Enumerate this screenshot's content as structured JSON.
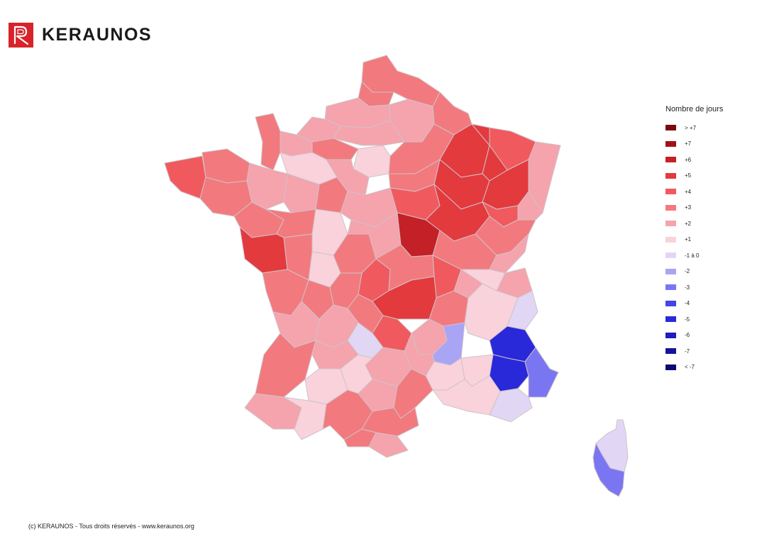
{
  "brand": {
    "name": "KERAUNOS",
    "color": "#d8232a"
  },
  "legend": {
    "title": "Nombre de jours",
    "items": [
      {
        "label": "> +7",
        "color": "#7a0a10"
      },
      {
        "label": "+7",
        "color": "#a11218"
      },
      {
        "label": "+6",
        "color": "#c42027"
      },
      {
        "label": "+5",
        "color": "#e33a3e"
      },
      {
        "label": "+4",
        "color": "#f05a5e"
      },
      {
        "label": "+3",
        "color": "#f27a7e"
      },
      {
        "label": "+2",
        "color": "#f5a3ad"
      },
      {
        "label": "+1",
        "color": "#f9d2dc"
      },
      {
        "label": "-1 à 0",
        "color": "#e2d6f5"
      },
      {
        "label": "-2",
        "color": "#aaa4f5"
      },
      {
        "label": "-3",
        "color": "#7a76f2"
      },
      {
        "label": "-4",
        "color": "#4444e8"
      },
      {
        "label": "-5",
        "color": "#2929da"
      },
      {
        "label": "-6",
        "color": "#1e1eb8"
      },
      {
        "label": "-7",
        "color": "#14149a"
      },
      {
        "label": "< -7",
        "color": "#0a0a70"
      }
    ]
  },
  "map": {
    "border_color": "#cfc3c8",
    "regions": [
      {
        "name": "nord",
        "level": "+3"
      },
      {
        "name": "pas-de-calais",
        "level": "+3"
      },
      {
        "name": "somme",
        "level": "+2"
      },
      {
        "name": "aisne",
        "level": "+2"
      },
      {
        "name": "ardennes",
        "level": "+3"
      },
      {
        "name": "seine-maritime",
        "level": "+2"
      },
      {
        "name": "oise",
        "level": "+2"
      },
      {
        "name": "manche",
        "level": "+3"
      },
      {
        "name": "calvados",
        "level": "+2"
      },
      {
        "name": "eure",
        "level": "+3"
      },
      {
        "name": "orne",
        "level": "+1"
      },
      {
        "name": "ile-de-france",
        "level": "+1"
      },
      {
        "name": "marne",
        "level": "+3"
      },
      {
        "name": "meuse",
        "level": "+5"
      },
      {
        "name": "moselle",
        "level": "+4"
      },
      {
        "name": "meurthe-et-moselle",
        "level": "+5"
      },
      {
        "name": "bas-rhin",
        "level": "+2"
      },
      {
        "name": "finistere",
        "level": "+4"
      },
      {
        "name": "cotes-darmor",
        "level": "+3"
      },
      {
        "name": "morbihan",
        "level": "+3"
      },
      {
        "name": "ille-et-vilaine",
        "level": "+2"
      },
      {
        "name": "mayenne",
        "level": "+2"
      },
      {
        "name": "sarthe",
        "level": "+3"
      },
      {
        "name": "eure-et-loir",
        "level": "+2"
      },
      {
        "name": "aube",
        "level": "+3"
      },
      {
        "name": "haute-marne",
        "level": "+5"
      },
      {
        "name": "vosges",
        "level": "+5"
      },
      {
        "name": "haut-rhin",
        "level": "+2"
      },
      {
        "name": "loire-atlantique",
        "level": "+3"
      },
      {
        "name": "maine-et-loire",
        "level": "+3"
      },
      {
        "name": "indre-et-loire",
        "level": "+1"
      },
      {
        "name": "loiret",
        "level": "+2"
      },
      {
        "name": "yonne",
        "level": "+4"
      },
      {
        "name": "cote-dor",
        "level": "+5"
      },
      {
        "name": "haute-saone",
        "level": "+4"
      },
      {
        "name": "doubs",
        "level": "+3"
      },
      {
        "name": "vendee",
        "level": "+5"
      },
      {
        "name": "deux-sevres",
        "level": "+3"
      },
      {
        "name": "vienne",
        "level": "+1"
      },
      {
        "name": "indre",
        "level": "+3"
      },
      {
        "name": "cher",
        "level": "+2"
      },
      {
        "name": "nievre",
        "level": "+6"
      },
      {
        "name": "saone-et-loire",
        "level": "+3"
      },
      {
        "name": "jura",
        "level": "+2"
      },
      {
        "name": "charente-maritime",
        "level": "+3"
      },
      {
        "name": "charente",
        "level": "+3"
      },
      {
        "name": "haute-vienne",
        "level": "+3"
      },
      {
        "name": "creuse",
        "level": "+4"
      },
      {
        "name": "allier",
        "level": "+3"
      },
      {
        "name": "loire",
        "level": "+4"
      },
      {
        "name": "rhone",
        "level": "+2"
      },
      {
        "name": "ain",
        "level": "+1"
      },
      {
        "name": "haute-savoie",
        "level": "+2"
      },
      {
        "name": "gironde",
        "level": "+2"
      },
      {
        "name": "dordogne",
        "level": "+2"
      },
      {
        "name": "correze",
        "level": "+3"
      },
      {
        "name": "puy-de-dome",
        "level": "+5"
      },
      {
        "name": "haute-loire",
        "level": "+3"
      },
      {
        "name": "isere",
        "level": "+1"
      },
      {
        "name": "savoie",
        "level": "-1 à 0"
      },
      {
        "name": "cantal",
        "level": "+4"
      },
      {
        "name": "ardeche",
        "level": "+2"
      },
      {
        "name": "drome",
        "level": "-2"
      },
      {
        "name": "hautes-alpes",
        "level": "-5"
      },
      {
        "name": "landes",
        "level": "+3"
      },
      {
        "name": "lot-et-garonne",
        "level": "+2"
      },
      {
        "name": "lot",
        "level": "-1 à 0"
      },
      {
        "name": "aveyron",
        "level": "+2"
      },
      {
        "name": "lozere",
        "level": "+2"
      },
      {
        "name": "gard",
        "level": "+1"
      },
      {
        "name": "vaucluse",
        "level": "+1"
      },
      {
        "name": "alpes-de-haute-provence",
        "level": "-5"
      },
      {
        "name": "alpes-maritimes",
        "level": "-3"
      },
      {
        "name": "gers",
        "level": "+1"
      },
      {
        "name": "tarn-et-garonne",
        "level": "+1"
      },
      {
        "name": "tarn",
        "level": "+2"
      },
      {
        "name": "herault",
        "level": "+3"
      },
      {
        "name": "bouches-du-rhone",
        "level": "+1"
      },
      {
        "name": "var",
        "level": "-1 à 0"
      },
      {
        "name": "pyrenees-atlantiques",
        "level": "+2"
      },
      {
        "name": "hautes-pyrenees",
        "level": "+1"
      },
      {
        "name": "haute-garonne",
        "level": "+3"
      },
      {
        "name": "aude",
        "level": "+3"
      },
      {
        "name": "ariege",
        "level": "+3"
      },
      {
        "name": "pyrenees-orientales",
        "level": "+2"
      },
      {
        "name": "haute-corse",
        "level": "-1 à 0"
      },
      {
        "name": "corse-du-sud",
        "level": "-3"
      }
    ]
  },
  "footer": {
    "text": "(c) KERAUNOS - Tous droits réservés - www.keraunos.org"
  }
}
